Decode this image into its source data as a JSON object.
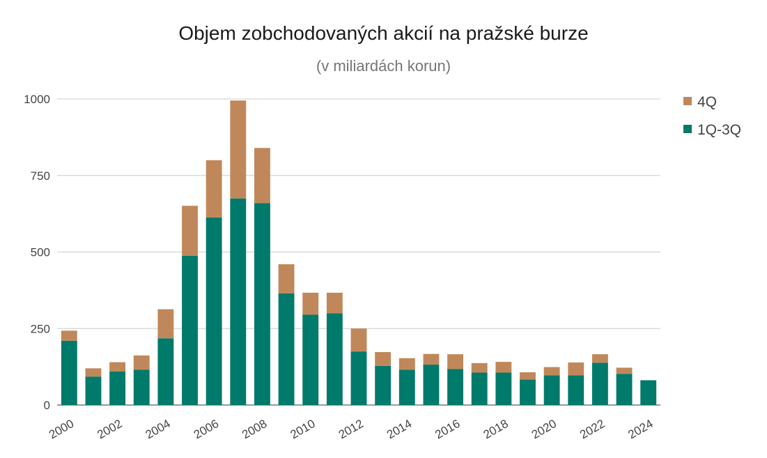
{
  "chart_data": {
    "type": "bar",
    "stacked": true,
    "title": "Objem zobchodovaných akcií na pražské burze",
    "subtitle": "(v miliardách korun)",
    "xlabel": "",
    "ylabel": "",
    "ylim": [
      0,
      1000
    ],
    "yticks": [
      0,
      250,
      500,
      750,
      1000
    ],
    "grid": true,
    "legend_position": "right",
    "categories": [
      "2000",
      "2001",
      "2002",
      "2003",
      "2004",
      "2005",
      "2006",
      "2007",
      "2008",
      "2009",
      "2010",
      "2011",
      "2012",
      "2013",
      "2014",
      "2015",
      "2016",
      "2017",
      "2018",
      "2019",
      "2020",
      "2021",
      "2022",
      "2023",
      "2024"
    ],
    "x_tick_labels": [
      "2000",
      "2002",
      "2004",
      "2006",
      "2008",
      "2010",
      "2012",
      "2014",
      "2016",
      "2018",
      "2020",
      "2022",
      "2024"
    ],
    "series": [
      {
        "name": "1Q-3Q",
        "color": "#007a6b",
        "values": [
          210,
          93,
          110,
          115,
          218,
          488,
          613,
          675,
          660,
          365,
          295,
          300,
          175,
          128,
          115,
          132,
          118,
          106,
          106,
          83,
          97,
          97,
          138,
          102,
          81
        ]
      },
      {
        "name": "4Q",
        "color": "#c0885a",
        "values": [
          33,
          27,
          30,
          47,
          95,
          163,
          187,
          320,
          180,
          95,
          72,
          67,
          75,
          45,
          38,
          35,
          48,
          31,
          35,
          24,
          27,
          42,
          28,
          20,
          0
        ]
      }
    ],
    "legend": [
      "4Q",
      "1Q-3Q"
    ]
  }
}
